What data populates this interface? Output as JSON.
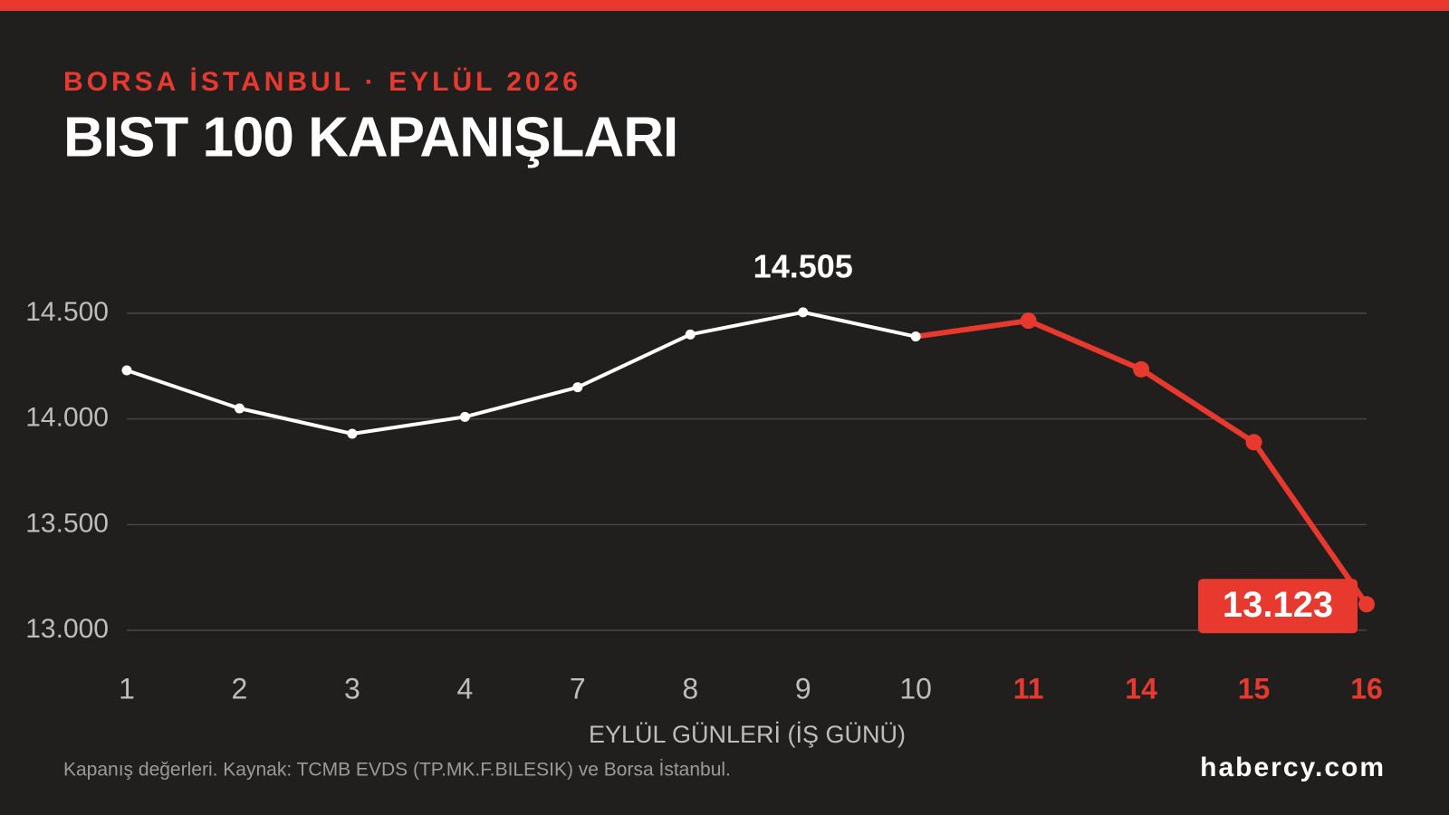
{
  "chart_data": {
    "type": "line",
    "subtitle": "BORSA İSTANBUL · EYLÜL 2026",
    "title": "BIST 100 KAPANIŞLARI",
    "x_label": "EYLÜL GÜNLERİ (İŞ GÜNÜ)",
    "source": "Kapanış değerleri. Kaynak: TCMB EVDS (TP.MK.F.BILESIK) ve Borsa İstanbul.",
    "brand": "habercy.com",
    "categories": [
      "1",
      "2",
      "3",
      "4",
      "7",
      "8",
      "9",
      "10",
      "11",
      "14",
      "15",
      "16"
    ],
    "values": [
      14230,
      14050,
      13930,
      14010,
      14150,
      14400,
      14505,
      14390,
      14465,
      14235,
      13890,
      13123
    ],
    "value_labels": [
      null,
      null,
      null,
      null,
      null,
      null,
      "14.505",
      null,
      null,
      null,
      null,
      "13.123"
    ],
    "colors": [
      "#ffffff",
      "#ffffff",
      "#ffffff",
      "#ffffff",
      "#ffffff",
      "#ffffff",
      "#ffffff",
      "#ffffff",
      "#e8392f",
      "#e8392f",
      "#e8392f",
      "#e8392f"
    ],
    "ylim": [
      13000,
      14500
    ],
    "yticks": [
      {
        "value": 13000,
        "label": "13.000"
      },
      {
        "value": 13500,
        "label": "13.500"
      },
      {
        "value": 14000,
        "label": "14.000"
      },
      {
        "value": 14500,
        "label": "14.500"
      }
    ],
    "grid": true
  }
}
